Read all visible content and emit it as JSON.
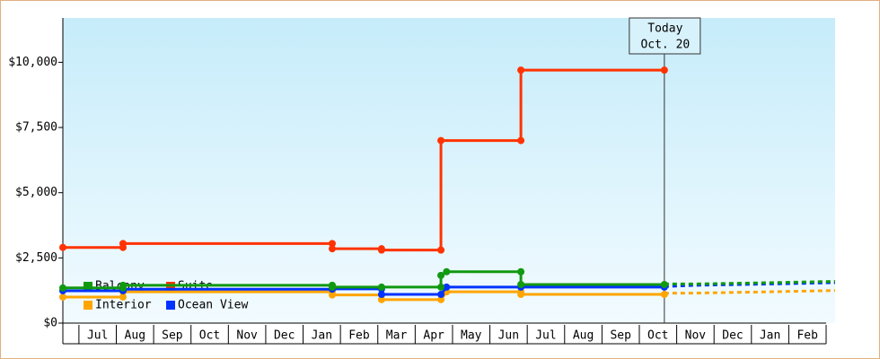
{
  "chart_data": {
    "type": "step-line",
    "categories": [
      "Jul",
      "Aug",
      "Sep",
      "Oct",
      "Nov",
      "Dec",
      "Jan",
      "Feb",
      "Mar",
      "Apr",
      "May",
      "Jun",
      "Jul",
      "Aug",
      "Sep",
      "Oct",
      "Nov",
      "Dec",
      "Jan",
      "Feb"
    ],
    "xlim": [
      -0.43,
      20.24
    ],
    "ylim": [
      0,
      11700
    ],
    "yticks": [
      {
        "value": 0,
        "label": "$0"
      },
      {
        "value": 2500,
        "label": "$2,500"
      },
      {
        "value": 5000,
        "label": "$5,000"
      },
      {
        "value": 7500,
        "label": "$7,500"
      },
      {
        "value": 10000,
        "label": "$10,000"
      }
    ],
    "today": {
      "x": 15.67,
      "label": [
        "Today",
        "Oct. 20"
      ]
    },
    "series": [
      {
        "name": "Balcony",
        "color": "#119911",
        "x": [
          -0.43,
          1.18,
          1.18,
          6.78,
          6.78,
          8.1,
          9.69,
          9.69,
          9.84,
          11.83,
          11.83,
          15.67
        ],
        "values": [
          1350,
          1350,
          1450,
          1450,
          1380,
          1380,
          1380,
          1830,
          1970,
          1970,
          1480,
          1480
        ],
        "forecast_x": [
          15.67,
          16.5,
          18.5,
          20.24
        ],
        "forecast_values": [
          1500,
          1500,
          1550,
          1600
        ]
      },
      {
        "name": "Suite",
        "color": "#ff3300",
        "x": [
          -0.43,
          1.18,
          1.18,
          6.78,
          6.78,
          8.1,
          8.1,
          9.69,
          9.69,
          11.83,
          11.83,
          15.67
        ],
        "values": [
          2900,
          2900,
          3050,
          3050,
          2850,
          2850,
          2800,
          2800,
          7000,
          7000,
          9700,
          9700
        ],
        "forecast_x": [],
        "forecast_values": []
      },
      {
        "name": "Interior",
        "color": "#ffa500",
        "x": [
          -0.43,
          1.18,
          1.18,
          6.78,
          6.78,
          8.1,
          8.1,
          9.69,
          9.84,
          11.83,
          11.83,
          15.67
        ],
        "values": [
          1000,
          1000,
          1200,
          1200,
          1080,
          1080,
          900,
          900,
          1200,
          1200,
          1100,
          1100
        ],
        "forecast_x": [
          15.67,
          16.5,
          18.5,
          20.24
        ],
        "forecast_values": [
          1150,
          1150,
          1200,
          1250
        ]
      },
      {
        "name": "Ocean View",
        "color": "#0033ff",
        "x": [
          -0.43,
          1.18,
          1.18,
          6.78,
          6.78,
          8.1,
          8.1,
          9.69,
          9.84,
          11.83,
          15.67
        ],
        "values": [
          1240,
          1240,
          1300,
          1300,
          1310,
          1310,
          1100,
          1100,
          1380,
          1380,
          1380
        ],
        "forecast_x": [
          15.67,
          16.5,
          18.5,
          20.24
        ],
        "forecast_values": [
          1400,
          1450,
          1500,
          1550
        ]
      }
    ]
  }
}
